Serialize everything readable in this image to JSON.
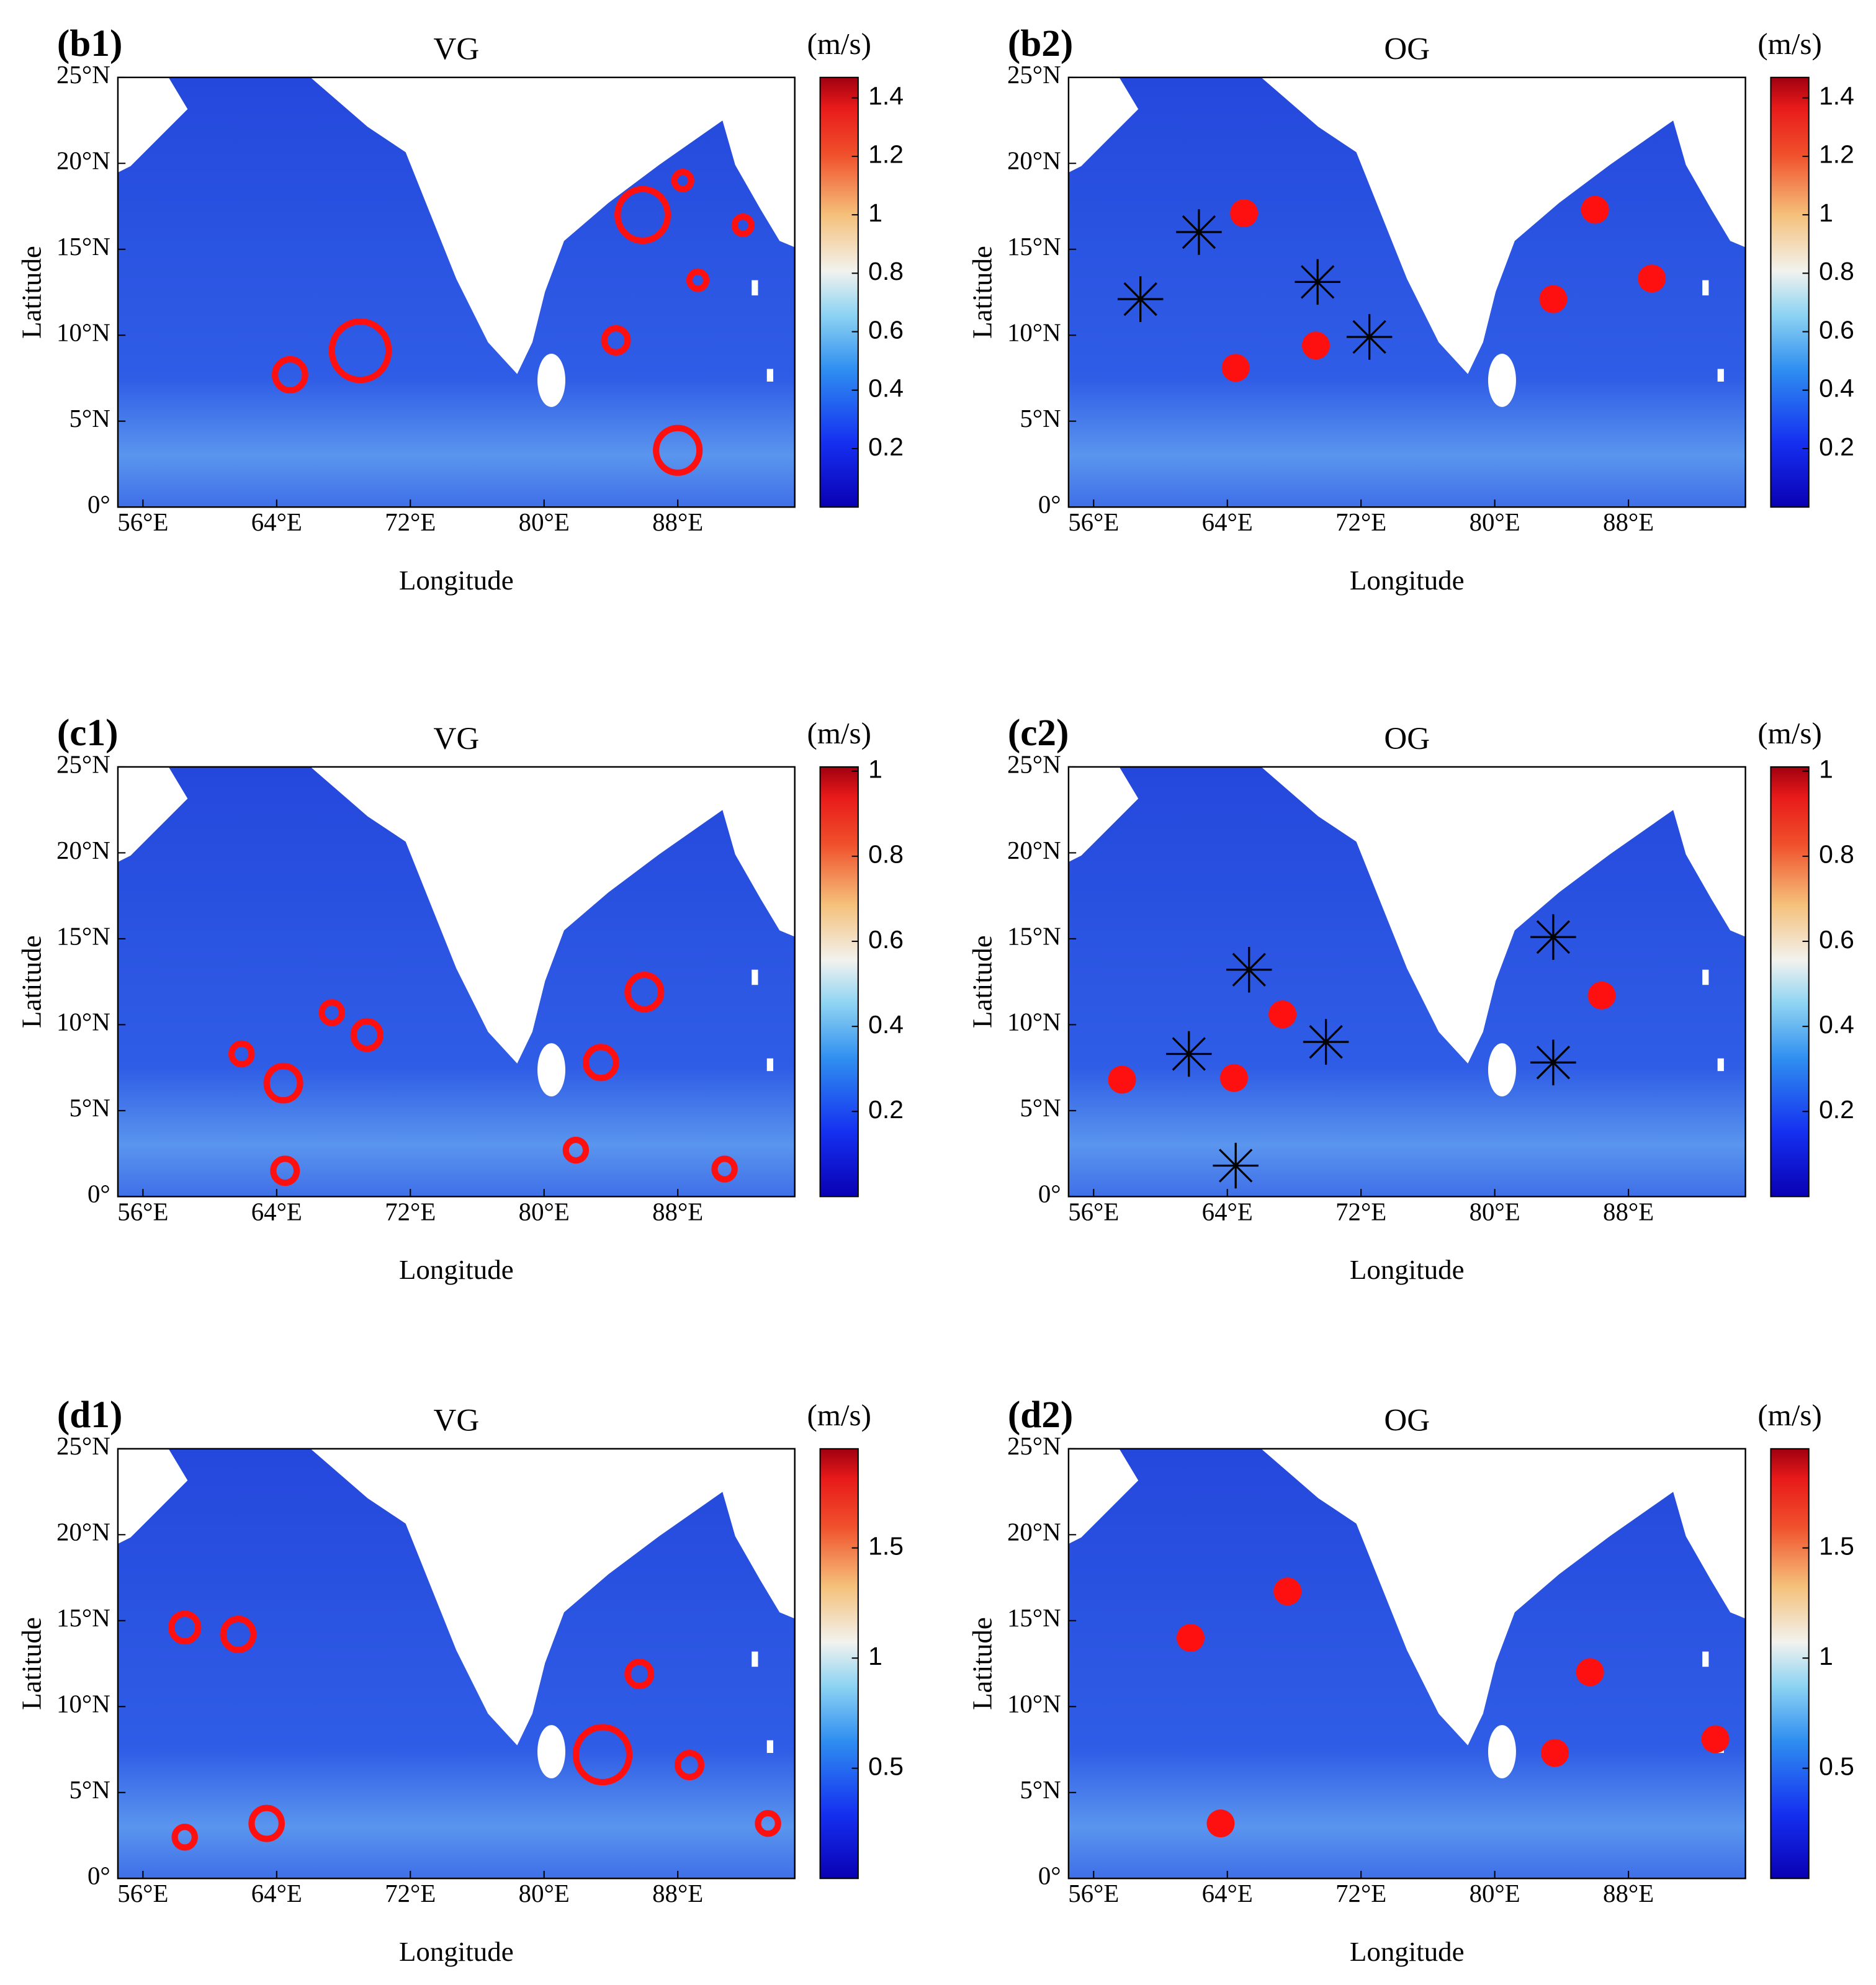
{
  "chart_data": [
    {
      "type": "map",
      "panel": "(b1)",
      "title": "VG",
      "xlabel": "Longitude",
      "ylabel": "Latitude",
      "xlim": [
        54.5,
        95
      ],
      "ylim": [
        0,
        25
      ],
      "xticks": [
        {
          "value": 56,
          "label": "56°E"
        },
        {
          "value": 64,
          "label": "64°E"
        },
        {
          "value": 72,
          "label": "72°E"
        },
        {
          "value": 80,
          "label": "80°E"
        },
        {
          "value": 88,
          "label": "88°E"
        }
      ],
      "yticks": [
        {
          "value": 0,
          "label": "0°"
        },
        {
          "value": 5,
          "label": "5°N"
        },
        {
          "value": 10,
          "label": "10°N"
        },
        {
          "value": 15,
          "label": "15°N"
        },
        {
          "value": 20,
          "label": "20°N"
        },
        {
          "value": 25,
          "label": "25°N"
        }
      ],
      "colorbar": {
        "label": "(m/s)",
        "lim": [
          0,
          1.47
        ],
        "ticks": [
          0.2,
          0.4,
          0.6,
          0.8,
          1,
          1.2,
          1.4
        ]
      },
      "series": [
        {
          "marker": "ring",
          "color": "#ff1010",
          "x": [
            69.0,
            64.8,
            85.9,
            88.3,
            91.9,
            89.2,
            84.3,
            88.0
          ],
          "y": [
            9.1,
            7.7,
            17.0,
            19.0,
            16.4,
            13.2,
            9.7,
            3.3
          ],
          "sizes": [
            1.7,
            0.9,
            1.5,
            0.5,
            0.5,
            0.5,
            0.7,
            1.3
          ]
        }
      ]
    },
    {
      "type": "map",
      "panel": "(b2)",
      "title": "OG",
      "xlabel": "Longitude",
      "ylabel": "Latitude",
      "xlim": [
        54.5,
        95
      ],
      "ylim": [
        0,
        25
      ],
      "xticks": [
        {
          "value": 56,
          "label": "56°E"
        },
        {
          "value": 64,
          "label": "64°E"
        },
        {
          "value": 72,
          "label": "72°E"
        },
        {
          "value": 80,
          "label": "80°E"
        },
        {
          "value": 88,
          "label": "88°E"
        }
      ],
      "yticks": [
        {
          "value": 0,
          "label": "0°"
        },
        {
          "value": 5,
          "label": "5°N"
        },
        {
          "value": 10,
          "label": "10°N"
        },
        {
          "value": 15,
          "label": "15°N"
        },
        {
          "value": 20,
          "label": "20°N"
        },
        {
          "value": 25,
          "label": "25°N"
        }
      ],
      "colorbar": {
        "label": "(m/s)",
        "lim": [
          0,
          1.47
        ],
        "ticks": [
          0.2,
          0.4,
          0.6,
          0.8,
          1,
          1.2,
          1.4
        ]
      },
      "series": [
        {
          "marker": "dot",
          "color": "#ff1010",
          "x": [
            65.0,
            64.5,
            69.3,
            86.0,
            89.4,
            83.5
          ],
          "y": [
            17.1,
            8.1,
            9.4,
            17.3,
            13.3,
            12.1
          ]
        },
        {
          "marker": "star",
          "color": "#000000",
          "x": [
            62.3,
            58.8,
            69.4,
            72.5
          ],
          "y": [
            16.0,
            12.1,
            13.1,
            9.9
          ]
        }
      ]
    },
    {
      "type": "map",
      "panel": "(c1)",
      "title": "VG",
      "xlabel": "Longitude",
      "ylabel": "Latitude",
      "xlim": [
        54.5,
        95
      ],
      "ylim": [
        0,
        25
      ],
      "xticks": [
        {
          "value": 56,
          "label": "56°E"
        },
        {
          "value": 64,
          "label": "64°E"
        },
        {
          "value": 72,
          "label": "72°E"
        },
        {
          "value": 80,
          "label": "80°E"
        },
        {
          "value": 88,
          "label": "88°E"
        }
      ],
      "yticks": [
        {
          "value": 0,
          "label": "0°"
        },
        {
          "value": 5,
          "label": "5°N"
        },
        {
          "value": 10,
          "label": "10°N"
        },
        {
          "value": 15,
          "label": "15°N"
        },
        {
          "value": 20,
          "label": "20°N"
        },
        {
          "value": 25,
          "label": "25°N"
        }
      ],
      "colorbar": {
        "label": "(m/s)",
        "lim": [
          0,
          1.01
        ],
        "ticks": [
          0.2,
          0.4,
          0.6,
          0.8,
          1
        ]
      },
      "series": [
        {
          "marker": "ring",
          "color": "#ff1010",
          "x": [
            61.9,
            64.4,
            64.5,
            67.3,
            69.4,
            83.4,
            86.0,
            81.9,
            90.8
          ],
          "y": [
            8.3,
            6.6,
            1.5,
            10.7,
            9.4,
            7.8,
            11.9,
            2.7,
            1.6
          ],
          "sizes": [
            0.6,
            1.0,
            0.7,
            0.6,
            0.8,
            0.9,
            1.0,
            0.6,
            0.6
          ]
        }
      ]
    },
    {
      "type": "map",
      "panel": "(c2)",
      "title": "OG",
      "xlabel": "Longitude",
      "ylabel": "Latitude",
      "xlim": [
        54.5,
        95
      ],
      "ylim": [
        0,
        25
      ],
      "xticks": [
        {
          "value": 56,
          "label": "56°E"
        },
        {
          "value": 64,
          "label": "64°E"
        },
        {
          "value": 72,
          "label": "72°E"
        },
        {
          "value": 80,
          "label": "80°E"
        },
        {
          "value": 88,
          "label": "88°E"
        }
      ],
      "yticks": [
        {
          "value": 0,
          "label": "0°"
        },
        {
          "value": 5,
          "label": "5°N"
        },
        {
          "value": 10,
          "label": "10°N"
        },
        {
          "value": 15,
          "label": "15°N"
        },
        {
          "value": 20,
          "label": "20°N"
        },
        {
          "value": 25,
          "label": "25°N"
        }
      ],
      "colorbar": {
        "label": "(m/s)",
        "lim": [
          0,
          1.01
        ],
        "ticks": [
          0.2,
          0.4,
          0.6,
          0.8,
          1
        ]
      },
      "series": [
        {
          "marker": "dot",
          "color": "#ff1010",
          "x": [
            57.7,
            64.4,
            67.3,
            86.4
          ],
          "y": [
            6.8,
            6.9,
            10.6,
            11.7
          ]
        },
        {
          "marker": "star",
          "color": "#000000",
          "x": [
            65.3,
            61.7,
            69.9,
            64.5,
            83.5,
            83.5
          ],
          "y": [
            13.2,
            8.3,
            9.0,
            1.8,
            15.1,
            7.8
          ]
        }
      ]
    },
    {
      "type": "map",
      "panel": "(d1)",
      "title": "VG",
      "xlabel": "Longitude",
      "ylabel": "Latitude",
      "xlim": [
        54.5,
        95
      ],
      "ylim": [
        0,
        25
      ],
      "xticks": [
        {
          "value": 56,
          "label": "56°E"
        },
        {
          "value": 64,
          "label": "64°E"
        },
        {
          "value": 72,
          "label": "72°E"
        },
        {
          "value": 80,
          "label": "80°E"
        },
        {
          "value": 88,
          "label": "88°E"
        }
      ],
      "yticks": [
        {
          "value": 0,
          "label": "0°"
        },
        {
          "value": 5,
          "label": "5°N"
        },
        {
          "value": 10,
          "label": "10°N"
        },
        {
          "value": 15,
          "label": "15°N"
        },
        {
          "value": 20,
          "label": "20°N"
        },
        {
          "value": 25,
          "label": "25°N"
        }
      ],
      "colorbar": {
        "label": "(m/s)",
        "lim": [
          0,
          1.95
        ],
        "ticks": [
          0.5,
          1,
          1.5
        ]
      },
      "series": [
        {
          "marker": "ring",
          "color": "#ff1010",
          "x": [
            58.5,
            61.7,
            85.7,
            83.5,
            88.7,
            58.5,
            63.4,
            93.4
          ],
          "y": [
            14.6,
            14.2,
            11.9,
            7.2,
            6.6,
            2.4,
            3.2,
            3.2
          ],
          "sizes": [
            0.8,
            0.9,
            0.7,
            1.6,
            0.7,
            0.6,
            0.9,
            0.6
          ]
        }
      ]
    },
    {
      "type": "map",
      "panel": "(d2)",
      "title": "OG",
      "xlabel": "Longitude",
      "ylabel": "Latitude",
      "xlim": [
        54.5,
        95
      ],
      "ylim": [
        0,
        25
      ],
      "xticks": [
        {
          "value": 56,
          "label": "56°E"
        },
        {
          "value": 64,
          "label": "64°E"
        },
        {
          "value": 72,
          "label": "72°E"
        },
        {
          "value": 80,
          "label": "80°E"
        },
        {
          "value": 88,
          "label": "88°E"
        }
      ],
      "yticks": [
        {
          "value": 0,
          "label": "0°"
        },
        {
          "value": 5,
          "label": "5°N"
        },
        {
          "value": 10,
          "label": "10°N"
        },
        {
          "value": 15,
          "label": "15°N"
        },
        {
          "value": 20,
          "label": "20°N"
        },
        {
          "value": 25,
          "label": "25°N"
        }
      ],
      "colorbar": {
        "label": "(m/s)",
        "lim": [
          0,
          1.95
        ],
        "ticks": [
          0.5,
          1,
          1.5
        ]
      },
      "series": [
        {
          "marker": "dot",
          "color": "#ff1010",
          "x": [
            61.8,
            67.6,
            63.6,
            85.7,
            83.6,
            93.2
          ],
          "y": [
            14.0,
            16.7,
            3.2,
            12.0,
            7.3,
            8.1
          ]
        }
      ]
    }
  ]
}
